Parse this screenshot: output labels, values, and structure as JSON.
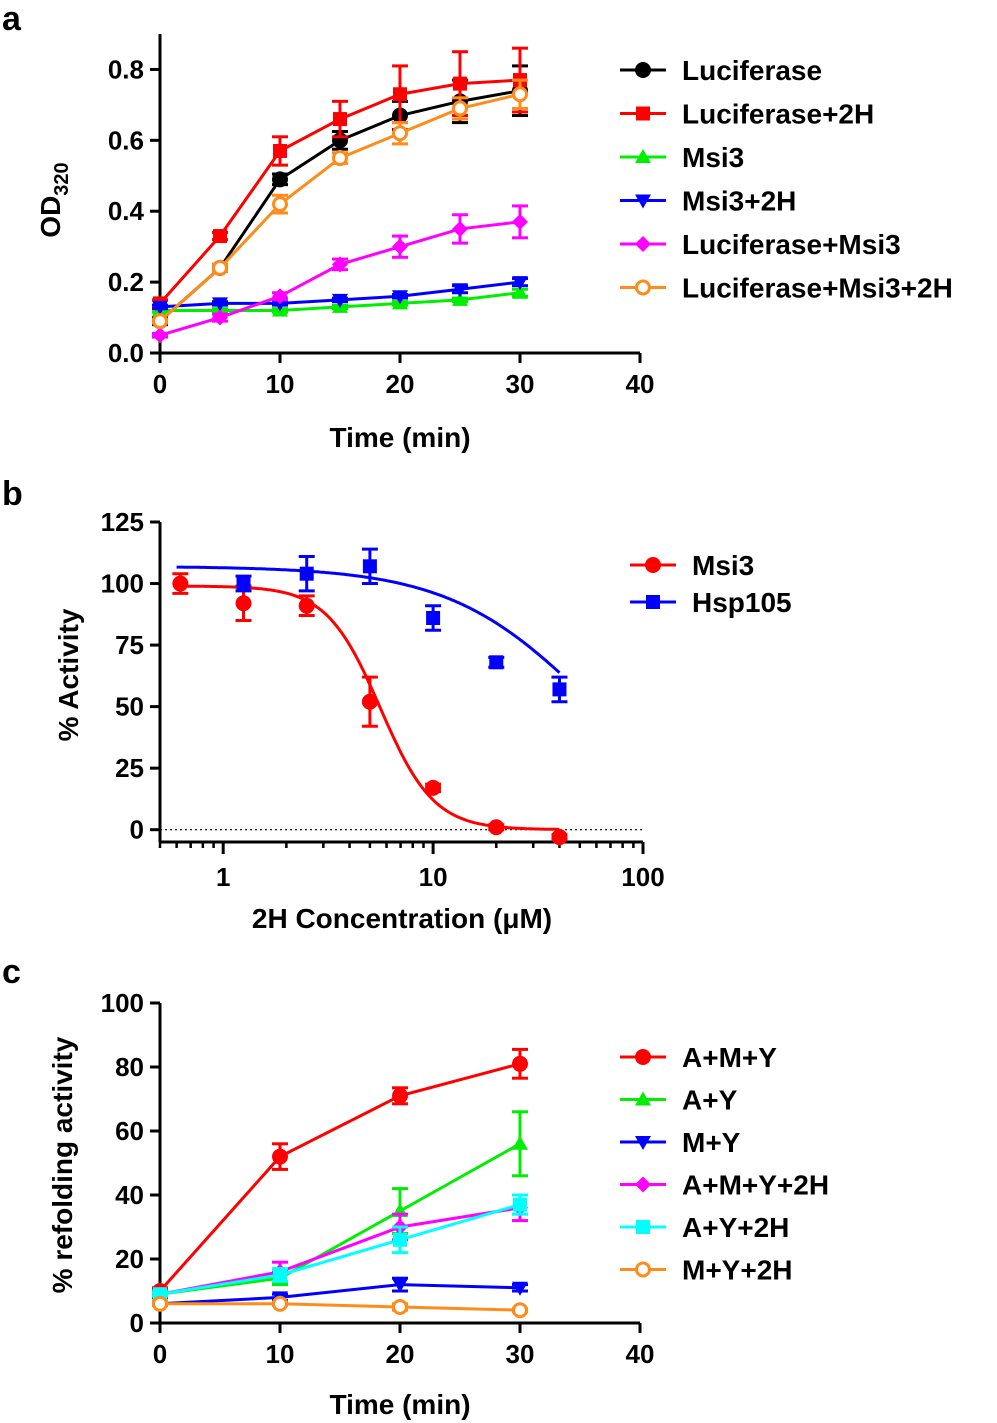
{
  "chart_data": [
    {
      "panel": "a",
      "type": "line",
      "xlabel": "Time (min)",
      "ylabel_main": "OD",
      "ylabel_sub": "320",
      "xlim": [
        0,
        40
      ],
      "ylim": [
        0,
        0.9
      ],
      "xticks": [
        0,
        10,
        20,
        30,
        40
      ],
      "yticks": [
        0.0,
        0.2,
        0.4,
        0.6,
        0.8
      ],
      "ytick_labels": [
        "0.0",
        "0.2",
        "0.4",
        "0.6",
        "0.8"
      ],
      "x": [
        0,
        5,
        10,
        15,
        20,
        25,
        30
      ],
      "series": [
        {
          "name": "Luciferase",
          "color": "#000000",
          "marker": "circle",
          "values": [
            0.09,
            0.24,
            0.49,
            0.6,
            0.67,
            0.71,
            0.74
          ],
          "errors": [
            0.01,
            0.01,
            0.015,
            0.025,
            0.04,
            0.06,
            0.07
          ]
        },
        {
          "name": "Luciferase+2H",
          "color": "#ff0000",
          "marker": "square",
          "values": [
            0.14,
            0.33,
            0.57,
            0.66,
            0.73,
            0.76,
            0.77
          ],
          "errors": [
            0.01,
            0.01,
            0.04,
            0.05,
            0.08,
            0.09,
            0.09
          ]
        },
        {
          "name": "Msi3",
          "color": "#00ee00",
          "marker": "triangle-up",
          "values": [
            0.12,
            0.12,
            0.12,
            0.13,
            0.14,
            0.15,
            0.17
          ],
          "errors": [
            0.005,
            0.005,
            0.005,
            0.005,
            0.005,
            0.005,
            0.01
          ]
        },
        {
          "name": "Msi3+2H",
          "color": "#0000ff",
          "marker": "triangle-down",
          "values": [
            0.13,
            0.14,
            0.14,
            0.15,
            0.16,
            0.18,
            0.2
          ],
          "errors": [
            0.005,
            0.005,
            0.005,
            0.005,
            0.005,
            0.01,
            0.01
          ]
        },
        {
          "name": "Luciferase+Msi3",
          "color": "#ff00ff",
          "marker": "diamond",
          "values": [
            0.05,
            0.1,
            0.16,
            0.25,
            0.3,
            0.35,
            0.37
          ],
          "errors": [
            0.005,
            0.01,
            0.01,
            0.015,
            0.03,
            0.04,
            0.045
          ]
        },
        {
          "name": "Luciferase+Msi3+2H",
          "color": "#ff8c1a",
          "marker": "circle-open",
          "values": [
            0.09,
            0.24,
            0.42,
            0.55,
            0.62,
            0.69,
            0.73
          ],
          "errors": [
            0.005,
            0.01,
            0.025,
            0.015,
            0.03,
            0.03,
            0.04
          ]
        }
      ]
    },
    {
      "panel": "b",
      "type": "scatter",
      "xscale": "log",
      "xlabel": "2H Concentration (μM)",
      "ylabel": "% Activity",
      "xlim": [
        0.5,
        100
      ],
      "ylim": [
        -5,
        125
      ],
      "xticks": [
        1,
        10,
        100
      ],
      "xtick_labels": [
        "1",
        "10",
        "100"
      ],
      "yticks": [
        0,
        25,
        50,
        75,
        100,
        125
      ],
      "ytick_labels": [
        "0",
        "25",
        "50",
        "75",
        "100",
        "125"
      ],
      "series": [
        {
          "name": "Msi3",
          "color": "#ff0000",
          "marker": "circle",
          "x": [
            0.625,
            1.25,
            2.5,
            5,
            10,
            20,
            40
          ],
          "values": [
            100,
            92,
            91,
            52,
            17,
            1,
            -3
          ],
          "errors": [
            4,
            7,
            4,
            10,
            1.5,
            1,
            1
          ],
          "fit": {
            "top": 99,
            "bottom": 0,
            "ic50": 5.6,
            "hill": 3.4
          }
        },
        {
          "name": "Hsp105",
          "color": "#0000ff",
          "marker": "square",
          "x": [
            1.25,
            2.5,
            5,
            10,
            20,
            40
          ],
          "values": [
            100,
            104,
            107,
            86,
            68,
            57
          ],
          "errors": [
            3,
            7,
            7,
            5,
            2,
            5
          ],
          "fit": {
            "top": 107,
            "bottom": 0,
            "ic50": 54,
            "hill": 1.3
          }
        }
      ]
    },
    {
      "panel": "c",
      "type": "line",
      "xlabel": "Time (min)",
      "ylabel": "% refolding activity",
      "xlim": [
        0,
        40
      ],
      "ylim": [
        0,
        100
      ],
      "xticks": [
        0,
        10,
        20,
        30,
        40
      ],
      "yticks": [
        0,
        20,
        40,
        60,
        80,
        100
      ],
      "ytick_labels": [
        "0",
        "20",
        "40",
        "60",
        "80",
        "100"
      ],
      "x": [
        0,
        10,
        20,
        30
      ],
      "series": [
        {
          "name": "A+M+Y",
          "color": "#ff0000",
          "marker": "circle",
          "values": [
            10,
            52,
            71,
            81
          ],
          "errors": [
            1,
            4,
            2.5,
            4.5
          ]
        },
        {
          "name": "A+Y",
          "color": "#00ee00",
          "marker": "triangle-up",
          "values": [
            9,
            14,
            35,
            56
          ],
          "errors": [
            1,
            2,
            7,
            10
          ]
        },
        {
          "name": "M+Y",
          "color": "#0000ff",
          "marker": "triangle-down",
          "values": [
            6,
            8,
            12,
            11
          ],
          "errors": [
            0.5,
            1,
            2,
            1
          ]
        },
        {
          "name": "A+M+Y+2H",
          "color": "#ff00ff",
          "marker": "diamond",
          "values": [
            9,
            16,
            30,
            36
          ],
          "errors": [
            0.5,
            3,
            4,
            4
          ]
        },
        {
          "name": "A+Y+2H",
          "color": "#00ffff",
          "marker": "square",
          "values": [
            9,
            15,
            26,
            37
          ],
          "errors": [
            0.5,
            2,
            4,
            3
          ]
        },
        {
          "name": "M+Y+2H",
          "color": "#ff8c1a",
          "marker": "circle-open",
          "values": [
            6,
            6,
            5,
            4
          ],
          "errors": [
            0.5,
            0.5,
            1,
            0.5
          ]
        }
      ]
    }
  ],
  "panel_labels": [
    "a",
    "b",
    "c"
  ]
}
